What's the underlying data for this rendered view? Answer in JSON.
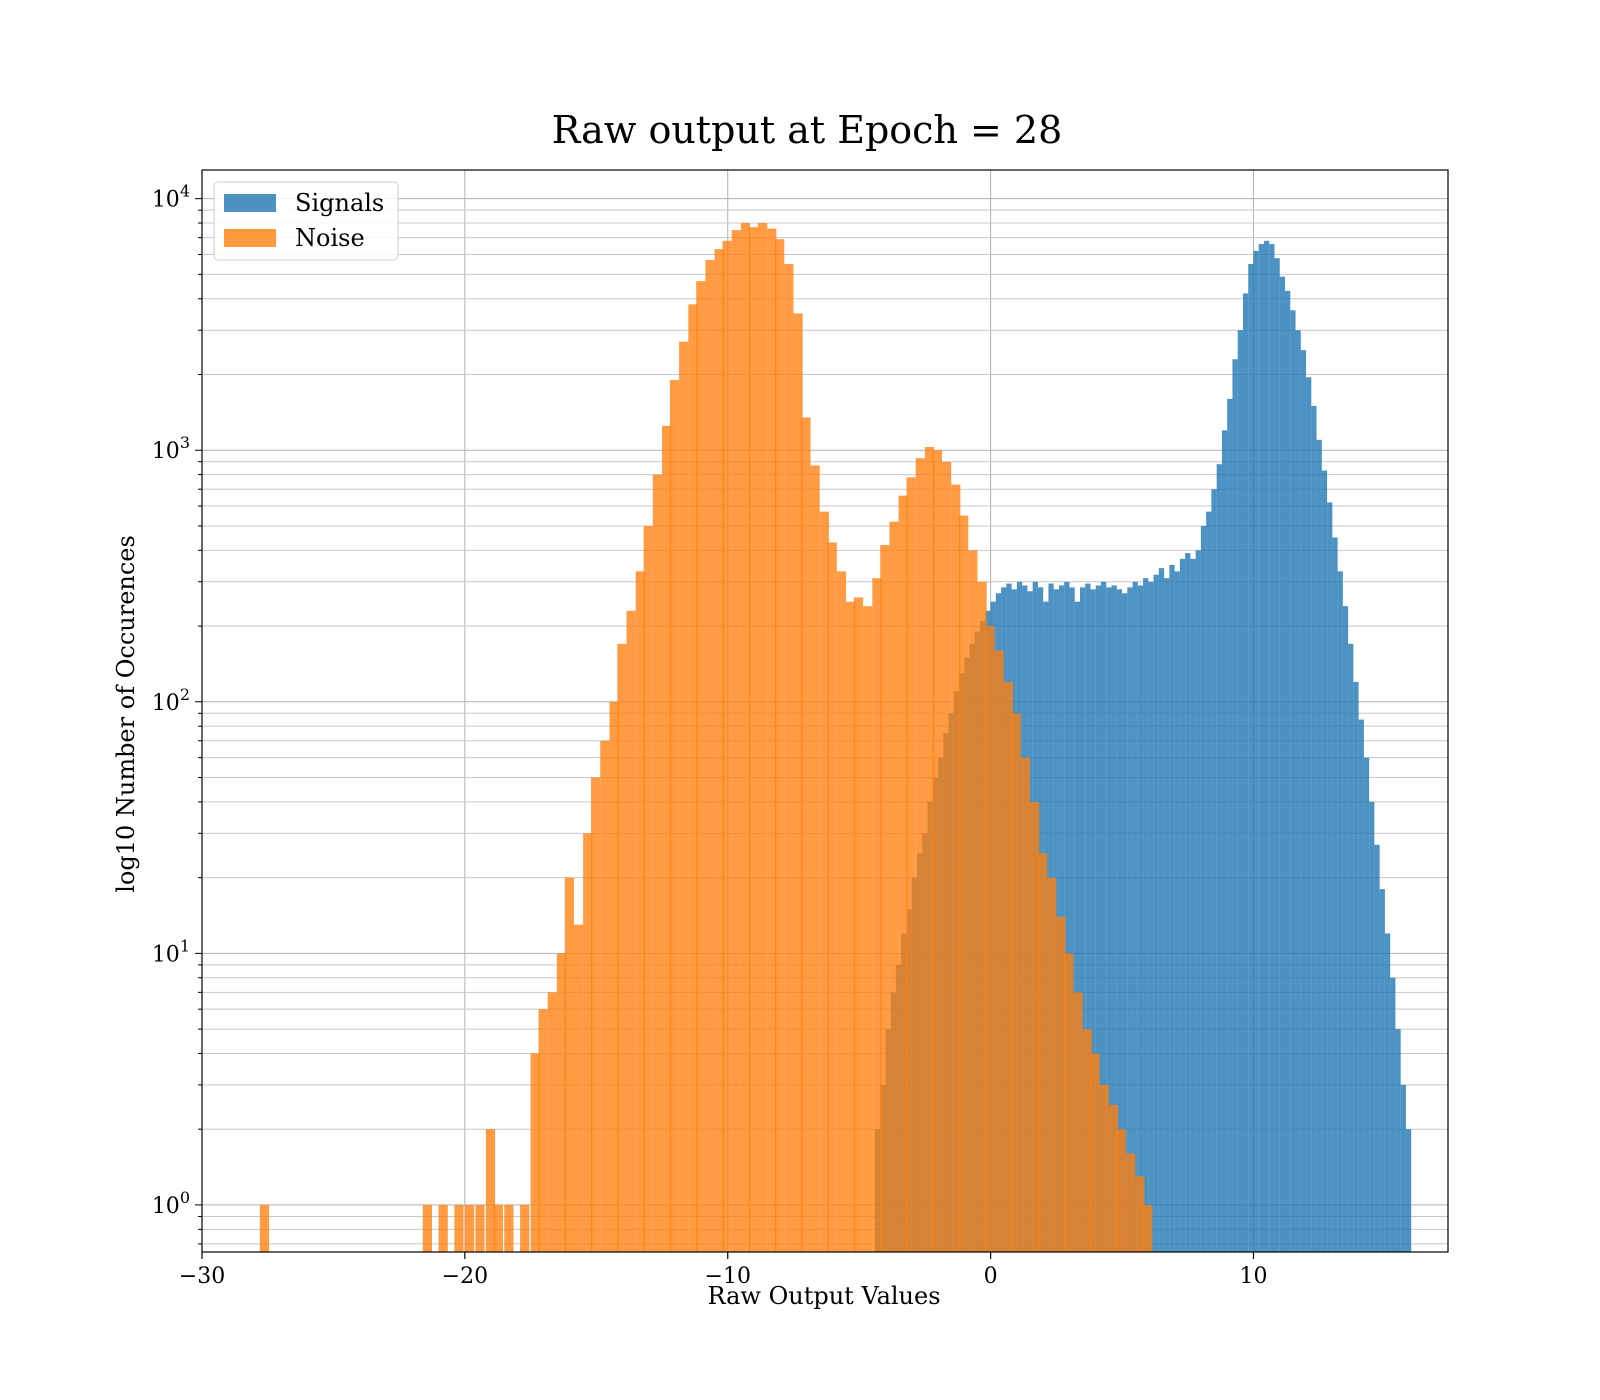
{
  "chart_data": {
    "type": "bar",
    "title": "Raw output at Epoch = 28",
    "xlabel": "Raw Output Values",
    "ylabel": "log10 Number of Occurences",
    "xlim": [
      -30,
      17.4
    ],
    "ylim": [
      0.65,
      13000
    ],
    "yscale": "log",
    "grid": true,
    "legend_position": "upper-left",
    "xticks": [
      -30,
      -20,
      -10,
      0,
      10
    ],
    "xtick_labels": [
      "−30",
      "−20",
      "−10",
      "0",
      "10"
    ],
    "yticks": [
      {
        "value": 1,
        "base": "10",
        "exp": "0"
      },
      {
        "value": 10,
        "base": "10",
        "exp": "1"
      },
      {
        "value": 100,
        "base": "10",
        "exp": "2"
      },
      {
        "value": 1000,
        "base": "10",
        "exp": "3"
      },
      {
        "value": 10000,
        "base": "10",
        "exp": "4"
      }
    ],
    "colors": {
      "Signals": "#1f77b4",
      "Noise": "#ff7f0e"
    },
    "series": [
      {
        "name": "Signals",
        "bin_width": 0.2,
        "values": [
          [
            -4.4,
            2
          ],
          [
            -4.2,
            3
          ],
          [
            -4.0,
            5
          ],
          [
            -3.8,
            7
          ],
          [
            -3.6,
            9
          ],
          [
            -3.4,
            12
          ],
          [
            -3.2,
            15
          ],
          [
            -3.0,
            20
          ],
          [
            -2.8,
            25
          ],
          [
            -2.6,
            30
          ],
          [
            -2.4,
            40
          ],
          [
            -2.2,
            50
          ],
          [
            -2.0,
            60
          ],
          [
            -1.8,
            75
          ],
          [
            -1.6,
            90
          ],
          [
            -1.4,
            110
          ],
          [
            -1.2,
            130
          ],
          [
            -1.0,
            150
          ],
          [
            -0.8,
            170
          ],
          [
            -0.6,
            190
          ],
          [
            -0.4,
            210
          ],
          [
            -0.2,
            230
          ],
          [
            0.0,
            250
          ],
          [
            0.2,
            270
          ],
          [
            0.4,
            285
          ],
          [
            0.6,
            295
          ],
          [
            0.8,
            280
          ],
          [
            1.0,
            300
          ],
          [
            1.2,
            290
          ],
          [
            1.4,
            275
          ],
          [
            1.6,
            300
          ],
          [
            1.8,
            285
          ],
          [
            2.0,
            250
          ],
          [
            2.2,
            295
          ],
          [
            2.4,
            280
          ],
          [
            2.6,
            290
          ],
          [
            2.8,
            300
          ],
          [
            3.0,
            285
          ],
          [
            3.2,
            250
          ],
          [
            3.4,
            285
          ],
          [
            3.6,
            295
          ],
          [
            3.8,
            280
          ],
          [
            4.0,
            290
          ],
          [
            4.2,
            300
          ],
          [
            4.4,
            285
          ],
          [
            4.6,
            290
          ],
          [
            4.8,
            280
          ],
          [
            5.0,
            270
          ],
          [
            5.2,
            285
          ],
          [
            5.4,
            300
          ],
          [
            5.6,
            290
          ],
          [
            5.8,
            310
          ],
          [
            6.0,
            300
          ],
          [
            6.2,
            320
          ],
          [
            6.4,
            340
          ],
          [
            6.6,
            310
          ],
          [
            6.8,
            350
          ],
          [
            7.0,
            330
          ],
          [
            7.2,
            370
          ],
          [
            7.4,
            390
          ],
          [
            7.6,
            370
          ],
          [
            7.8,
            400
          ],
          [
            8.0,
            500
          ],
          [
            8.2,
            570
          ],
          [
            8.4,
            700
          ],
          [
            8.6,
            880
          ],
          [
            8.8,
            1200
          ],
          [
            9.0,
            1600
          ],
          [
            9.2,
            2300
          ],
          [
            9.4,
            3000
          ],
          [
            9.6,
            4200
          ],
          [
            9.8,
            5500
          ],
          [
            10.0,
            6200
          ],
          [
            10.2,
            6600
          ],
          [
            10.4,
            6800
          ],
          [
            10.6,
            6600
          ],
          [
            10.8,
            5800
          ],
          [
            11.0,
            4900
          ],
          [
            11.2,
            4300
          ],
          [
            11.4,
            3600
          ],
          [
            11.6,
            3000
          ],
          [
            11.8,
            2500
          ],
          [
            12.0,
            1950
          ],
          [
            12.2,
            1500
          ],
          [
            12.4,
            1100
          ],
          [
            12.6,
            830
          ],
          [
            12.8,
            620
          ],
          [
            13.0,
            450
          ],
          [
            13.2,
            330
          ],
          [
            13.4,
            240
          ],
          [
            13.6,
            170
          ],
          [
            13.8,
            120
          ],
          [
            14.0,
            85
          ],
          [
            14.2,
            60
          ],
          [
            14.4,
            40
          ],
          [
            14.6,
            27
          ],
          [
            14.8,
            18
          ],
          [
            15.0,
            12
          ],
          [
            15.2,
            8
          ],
          [
            15.4,
            5
          ],
          [
            15.6,
            3
          ],
          [
            15.8,
            2
          ]
        ]
      },
      {
        "name": "Noise",
        "bin_width": 0.35,
        "values": [
          [
            -27.8,
            1
          ],
          [
            -21.6,
            1
          ],
          [
            -21.0,
            1
          ],
          [
            -20.4,
            1
          ],
          [
            -20.0,
            1
          ],
          [
            -19.6,
            1
          ],
          [
            -19.2,
            2
          ],
          [
            -18.9,
            1
          ],
          [
            -18.5,
            1
          ],
          [
            -17.9,
            1
          ],
          [
            -17.5,
            4
          ],
          [
            -17.2,
            6
          ],
          [
            -16.85,
            7
          ],
          [
            -16.5,
            10
          ],
          [
            -16.2,
            20
          ],
          [
            -15.85,
            13
          ],
          [
            -15.5,
            30
          ],
          [
            -15.2,
            50
          ],
          [
            -14.85,
            70
          ],
          [
            -14.5,
            100
          ],
          [
            -14.2,
            170
          ],
          [
            -13.85,
            230
          ],
          [
            -13.5,
            330
          ],
          [
            -13.2,
            500
          ],
          [
            -12.85,
            800
          ],
          [
            -12.5,
            1250
          ],
          [
            -12.2,
            1900
          ],
          [
            -11.85,
            2700
          ],
          [
            -11.5,
            3800
          ],
          [
            -11.2,
            4700
          ],
          [
            -10.85,
            5700
          ],
          [
            -10.5,
            6300
          ],
          [
            -10.2,
            6800
          ],
          [
            -9.85,
            7500
          ],
          [
            -9.5,
            8000
          ],
          [
            -9.2,
            7700
          ],
          [
            -8.85,
            8000
          ],
          [
            -8.5,
            7600
          ],
          [
            -8.2,
            6900
          ],
          [
            -7.85,
            5500
          ],
          [
            -7.5,
            3500
          ],
          [
            -7.2,
            1350
          ],
          [
            -6.85,
            870
          ],
          [
            -6.5,
            570
          ],
          [
            -6.2,
            430
          ],
          [
            -5.85,
            330
          ],
          [
            -5.5,
            250
          ],
          [
            -5.2,
            260
          ],
          [
            -4.85,
            240
          ],
          [
            -4.5,
            310
          ],
          [
            -4.2,
            420
          ],
          [
            -3.85,
            520
          ],
          [
            -3.5,
            660
          ],
          [
            -3.2,
            780
          ],
          [
            -2.85,
            930
          ],
          [
            -2.5,
            1030
          ],
          [
            -2.2,
            1000
          ],
          [
            -1.85,
            900
          ],
          [
            -1.5,
            730
          ],
          [
            -1.2,
            550
          ],
          [
            -0.85,
            400
          ],
          [
            -0.5,
            300
          ],
          [
            -0.2,
            200
          ],
          [
            0.15,
            160
          ],
          [
            0.5,
            120
          ],
          [
            0.8,
            90
          ],
          [
            1.15,
            60
          ],
          [
            1.5,
            40
          ],
          [
            1.8,
            25
          ],
          [
            2.15,
            20
          ],
          [
            2.5,
            14
          ],
          [
            2.8,
            10
          ],
          [
            3.15,
            7
          ],
          [
            3.5,
            5
          ],
          [
            3.8,
            4
          ],
          [
            4.15,
            3
          ],
          [
            4.5,
            2.5
          ],
          [
            4.8,
            2
          ],
          [
            5.15,
            1.6
          ],
          [
            5.5,
            1.3
          ],
          [
            5.8,
            1
          ]
        ]
      }
    ]
  }
}
